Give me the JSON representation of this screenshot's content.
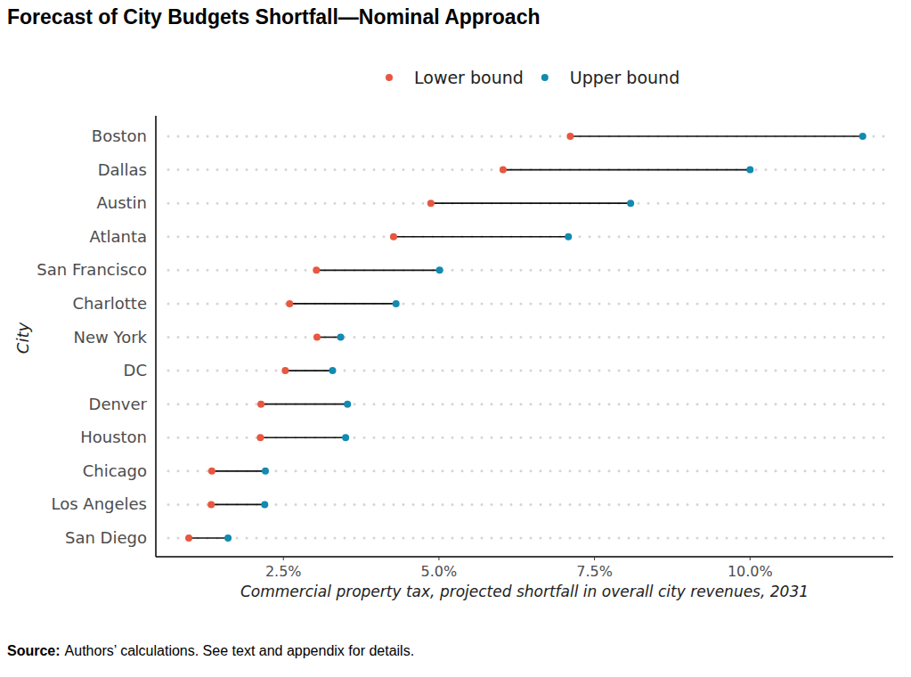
{
  "chart_data": {
    "type": "dumbbell",
    "title": "Forecast of City Budgets Shortfall—Nominal Approach",
    "x_label": "Commercial property tax, projected shortfall in overall city revenues, 2031",
    "y_label": "City",
    "source_label": "Source:",
    "source": "Authors’ calculations. See text and appendix for details.",
    "orientation": "horizontal",
    "legend": "top",
    "grid": true,
    "categories": [
      "Boston",
      "Dallas",
      "Austin",
      "Atlanta",
      "San Francisco",
      "Charlotte",
      "New York",
      "DC",
      "Denver",
      "Houston",
      "Chicago",
      "Los Angeles",
      "San Diego"
    ],
    "series": [
      {
        "name": "Lower bound",
        "color": "#e8573f",
        "values": [
          7.11,
          6.03,
          4.87,
          4.27,
          3.03,
          2.6,
          3.04,
          2.53,
          2.14,
          2.13,
          1.35,
          1.34,
          0.98
        ]
      },
      {
        "name": "Upper bound",
        "color": "#138ab0",
        "values": [
          11.81,
          10.0,
          8.08,
          7.08,
          5.01,
          4.31,
          3.42,
          3.29,
          3.53,
          3.5,
          2.21,
          2.2,
          1.61
        ]
      }
    ],
    "xlim": [
      0.45,
      12.3
    ],
    "xticks": [
      {
        "value": 2.5,
        "label": "2.5%"
      },
      {
        "value": 5.0,
        "label": "5.0%"
      },
      {
        "value": 7.5,
        "label": "7.5%"
      },
      {
        "value": 10.0,
        "label": "10.0%"
      }
    ]
  }
}
